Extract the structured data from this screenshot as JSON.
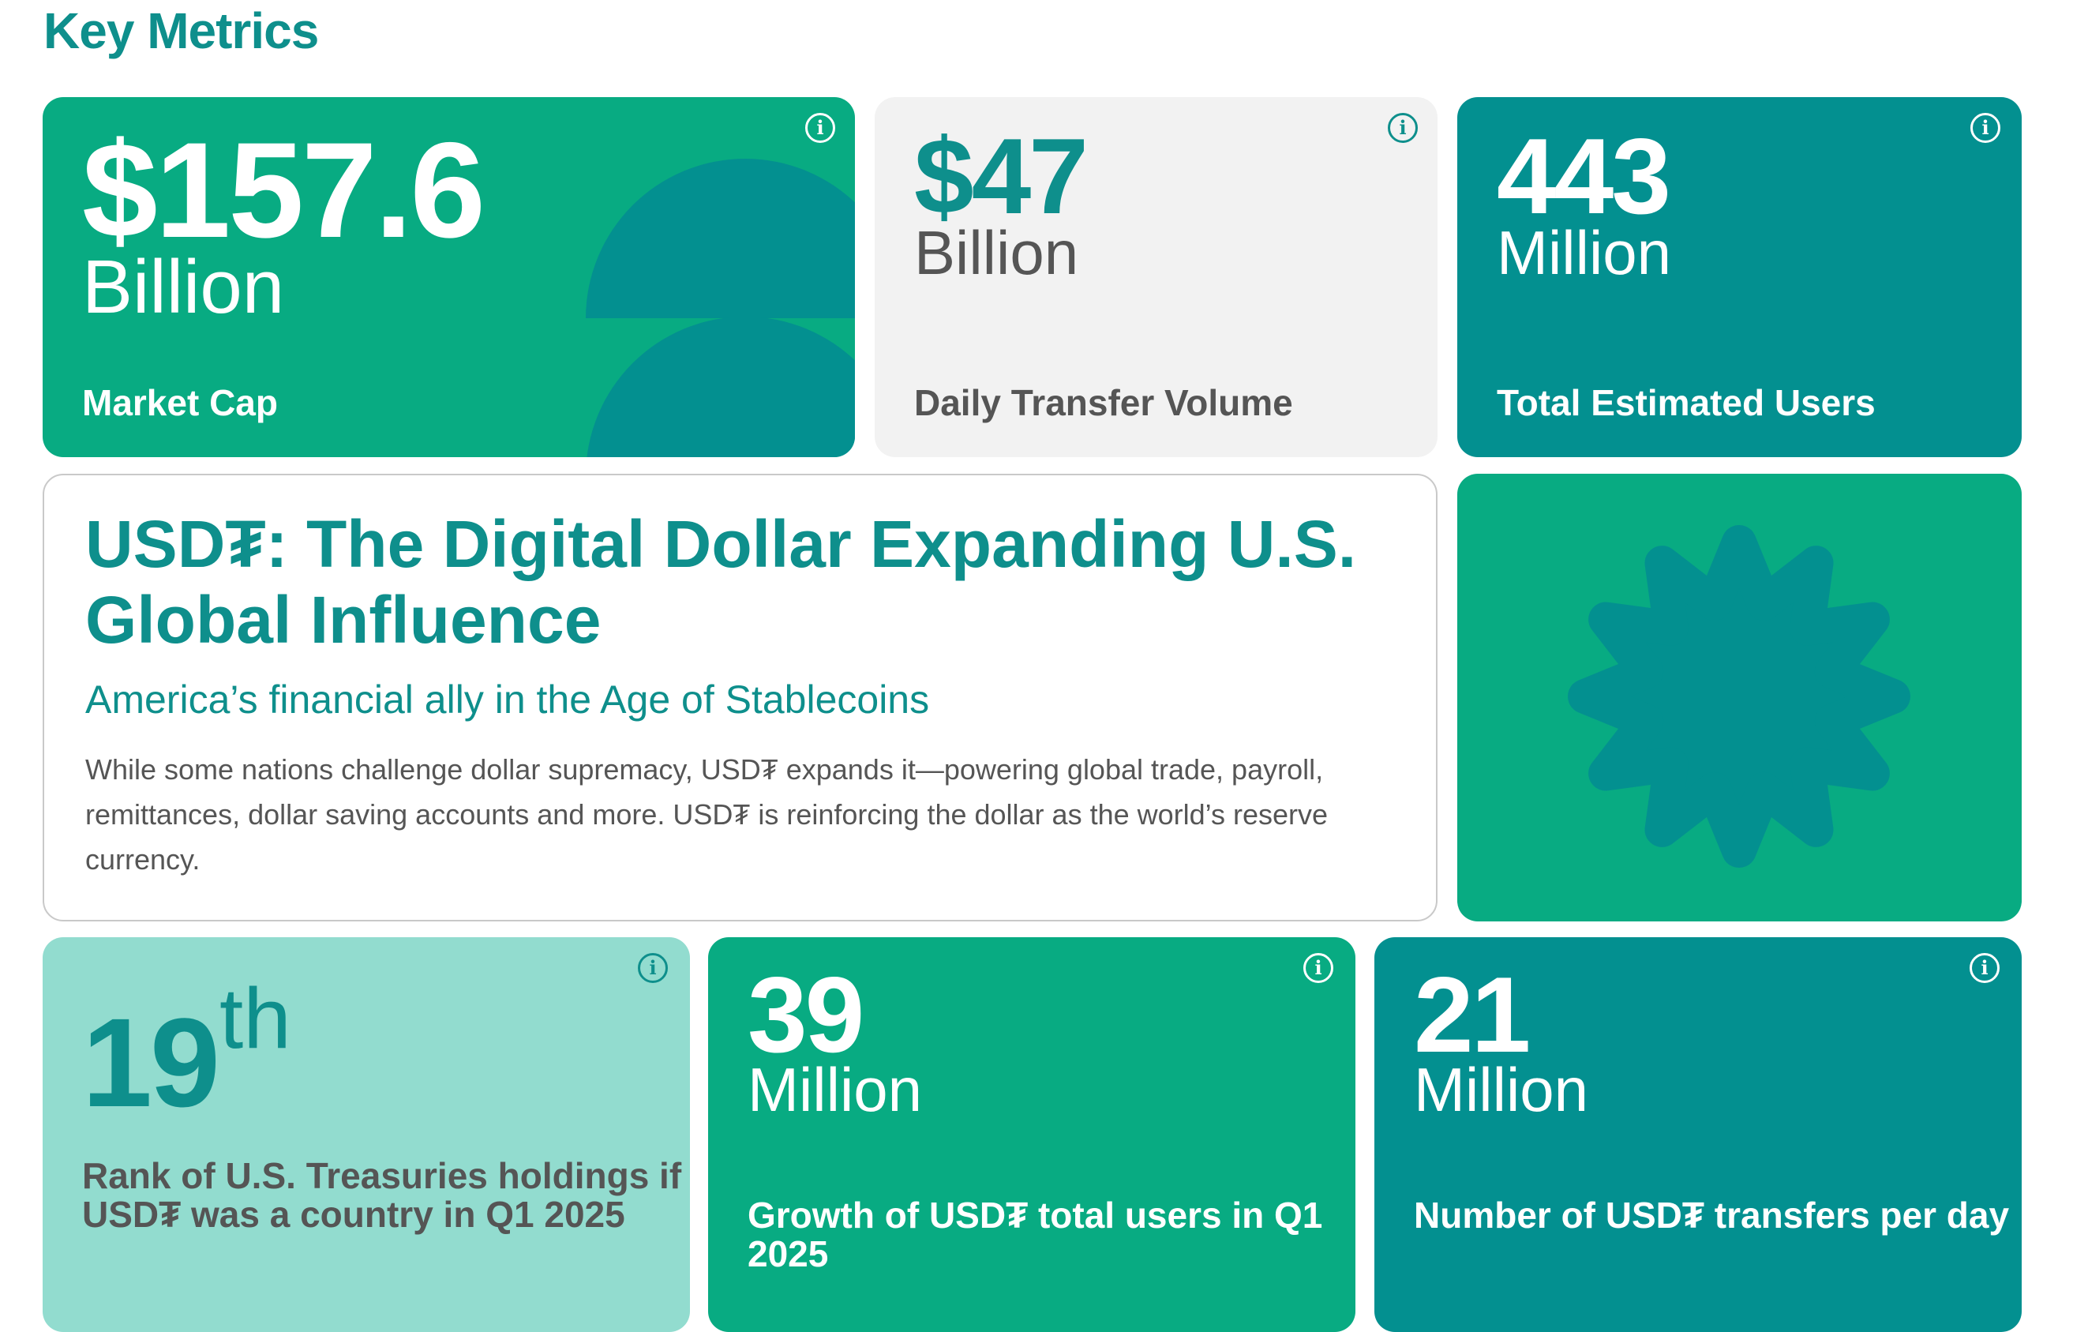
{
  "section": {
    "title": "Key Metrics"
  },
  "metrics": [
    {
      "value": "$157.6",
      "unit": "Billion",
      "label": "Market Cap"
    },
    {
      "value": "$47",
      "unit": "Billion",
      "label": "Daily Transfer Volume"
    },
    {
      "value": "443",
      "unit": "Million",
      "label": "Total Estimated Users"
    }
  ],
  "hero": {
    "title": "USD₮: The Digital Dollar Expanding U.S. Global Influence",
    "subtitle": "America’s financial ally in the Age of Stablecoins",
    "body": "While some nations challenge dollar supremacy, USD₮ expands it—powering global trade, payroll, remittances, dollar saving accounts and more. USD₮ is reinforcing the dollar as the world’s reserve currency."
  },
  "bottom_metrics": [
    {
      "value": "19",
      "suffix": "th",
      "label": "Rank of U.S. Treasuries holdings if USD₮ was a country in Q1 2025"
    },
    {
      "value": "39",
      "unit": "Million",
      "label": "Growth of USD₮ total users in Q1 2025"
    },
    {
      "value": "21",
      "unit": "Million",
      "label": "Number of USD₮ transfers per day"
    }
  ],
  "info_icon_glyph": "i",
  "colors": {
    "green": "#08ab82",
    "teal": "#039090",
    "grey": "#f2f2f2",
    "mint": "#92dccf",
    "title_teal": "#0e8f8c"
  },
  "icons": [
    "info-icon",
    "half-circle-decoration",
    "starburst-decoration"
  ]
}
